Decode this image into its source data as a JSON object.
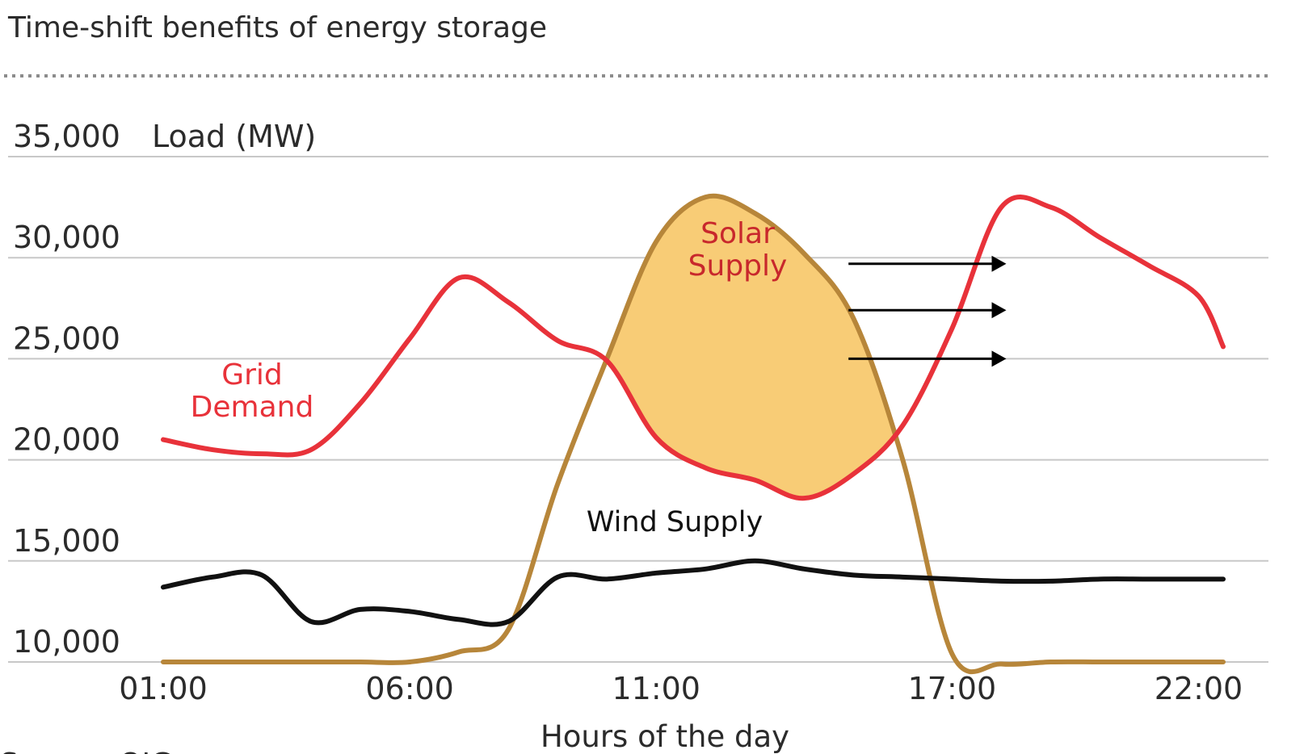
{
  "chart_data": {
    "type": "line",
    "title": "Time-shift benefits of energy storage",
    "ylabel": "Load (MW)",
    "xlabel": "Hours of the day",
    "source": "Source: OIG",
    "ylim": [
      10000,
      35000
    ],
    "yticks": [
      35000,
      30000,
      25000,
      20000,
      15000,
      10000
    ],
    "ytick_labels": [
      "35,000",
      "30,000",
      "25,000",
      "20,000",
      "15,000",
      "10,000"
    ],
    "xlim": [
      1,
      22.5
    ],
    "xticks": [
      1,
      6,
      11,
      17,
      22
    ],
    "xtick_labels": [
      "01:00",
      "06:00",
      "11:00",
      "17:00",
      "22:00"
    ],
    "grid": true,
    "series": [
      {
        "name": "Grid Demand",
        "color": "#e8323a",
        "x": [
          1,
          2,
          3,
          4,
          5,
          6,
          7,
          8,
          9,
          10,
          11,
          12,
          13,
          14,
          15,
          16,
          17,
          18,
          19,
          20,
          21,
          22,
          22.5
        ],
        "y": [
          21000,
          20500,
          20300,
          20500,
          22800,
          26000,
          29000,
          27800,
          25900,
          24900,
          21100,
          19600,
          19000,
          18100,
          19300,
          21700,
          26500,
          32500,
          32500,
          31000,
          29600,
          28100,
          25600
        ]
      },
      {
        "name": "Solar Supply",
        "color": "#b7863a",
        "x": [
          1,
          2,
          3,
          4,
          5,
          6,
          7,
          8,
          9,
          10,
          11,
          12,
          13,
          14,
          15,
          16,
          17,
          18,
          19,
          20,
          21,
          22,
          22.5
        ],
        "y": [
          10000,
          10000,
          10000,
          10000,
          10000,
          10000,
          10500,
          11600,
          18800,
          25000,
          30800,
          33000,
          32200,
          30200,
          27000,
          20000,
          10400,
          9900,
          10000,
          10000,
          10000,
          10000,
          10000
        ]
      },
      {
        "name": "Wind Supply",
        "color": "#111111",
        "x": [
          1,
          2,
          3,
          4,
          5,
          6,
          7,
          8,
          9,
          10,
          11,
          12,
          13,
          14,
          15,
          16,
          17,
          18,
          19,
          20,
          21,
          22,
          22.5
        ],
        "y": [
          13700,
          14200,
          14300,
          12000,
          12600,
          12500,
          12100,
          12000,
          14200,
          14100,
          14400,
          14600,
          15000,
          14600,
          14300,
          14200,
          14100,
          14000,
          14000,
          14100,
          14100,
          14100,
          14100
        ]
      }
    ],
    "annotations": {
      "grid_demand_label": [
        "Grid",
        "Demand"
      ],
      "solar_label": [
        "Solar",
        "Supply"
      ],
      "wind_label": "Wind Supply",
      "shift_arrows": [
        {
          "x_from": 14.9,
          "x_to": 18.1,
          "y": 29700
        },
        {
          "x_from": 14.9,
          "x_to": 18.1,
          "y": 27400
        },
        {
          "x_from": 14.9,
          "x_to": 18.1,
          "y": 25000
        }
      ],
      "shaded_region_color": "#f8cc76"
    }
  }
}
